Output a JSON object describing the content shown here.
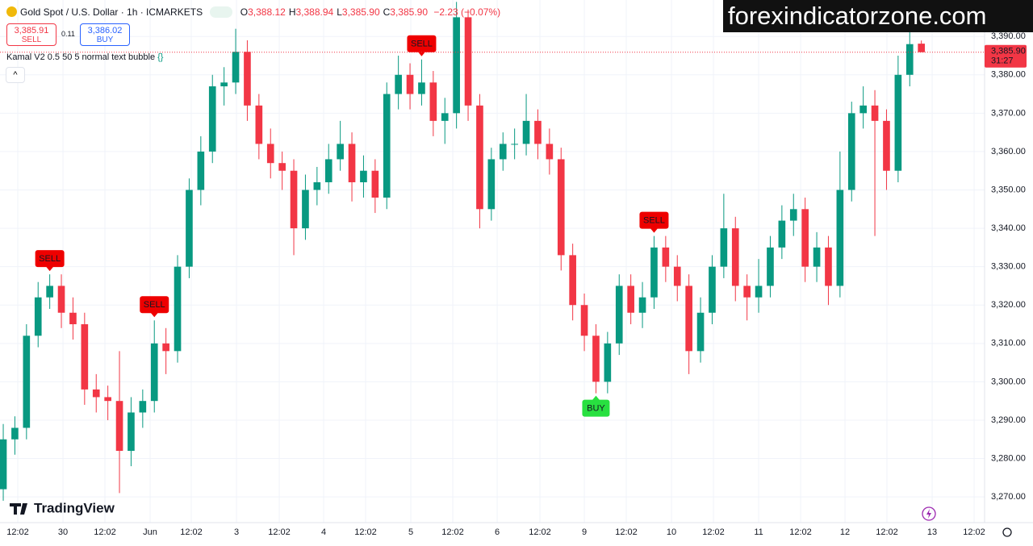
{
  "header": {
    "title": "Gold Spot / U.S. Dollar · 1h · ICMARKETS",
    "ohlc": [
      {
        "key": "O",
        "value": "3,388.12"
      },
      {
        "key": "H",
        "value": "3,388.94"
      },
      {
        "key": "L",
        "value": "3,385.90"
      },
      {
        "key": "C",
        "value": "3,385.90"
      }
    ],
    "change": "−2.23 (−0.07%)",
    "sell": {
      "price": "3,385.91",
      "label": "SELL"
    },
    "spread": "0.11",
    "buy": {
      "price": "3,386.02",
      "label": "BUY"
    },
    "indicator": "Kamal V2 0.5 50 5 normal text bubble"
  },
  "watermark": "forexindicatorzone.com",
  "logo": "TradingView",
  "chart_data": {
    "type": "candlestick",
    "up_color": "#089981",
    "down_color": "#f23645",
    "grid": true,
    "open": [
      3272,
      3285,
      3288,
      3312,
      3322,
      3325,
      3318,
      3315,
      3298,
      3296,
      3295,
      3282,
      3292,
      3295,
      3310,
      3308,
      3330,
      3350,
      3360,
      3377,
      3378,
      3386,
      3372,
      3362,
      3357,
      3355,
      3340,
      3350,
      3352,
      3358,
      3362,
      3352,
      3355,
      3348,
      3375,
      3380,
      3375,
      3378,
      3368,
      3370,
      3395,
      3372,
      3345,
      3358,
      3362,
      3362,
      3368,
      3362,
      3358,
      3333,
      3320,
      3312,
      3300,
      3310,
      3325,
      3318,
      3322,
      3335,
      3330,
      3325,
      3308,
      3318,
      3330,
      3340,
      3325,
      3322,
      3325,
      3335,
      3342,
      3345,
      3330,
      3335,
      3325,
      3350,
      3370,
      3372,
      3368,
      3355,
      3380,
      3388.12
    ],
    "high": [
      3289,
      3291,
      3315,
      3326,
      3328,
      3328,
      3322,
      3318,
      3302,
      3299,
      3308,
      3296,
      3298,
      3316,
      3314,
      3333,
      3353,
      3364,
      3380,
      3382,
      3392,
      3389,
      3375,
      3366,
      3360,
      3358,
      3354,
      3356,
      3362,
      3368,
      3365,
      3359,
      3358,
      3378,
      3385,
      3383,
      3384,
      3381,
      3374,
      3399,
      3397,
      3375,
      3361,
      3365,
      3366,
      3375,
      3371,
      3366,
      3361,
      3336,
      3323,
      3315,
      3313,
      3328,
      3328,
      3326,
      3338,
      3338,
      3333,
      3328,
      3322,
      3333,
      3349,
      3343,
      3328,
      3332,
      3338,
      3346,
      3349,
      3348,
      3339,
      3338,
      3360,
      3373,
      3377,
      3376,
      3371,
      3385,
      3392,
      3388.94
    ],
    "low": [
      3269,
      3281,
      3285,
      3309,
      3319,
      3314,
      3311,
      3294,
      3292,
      3290,
      3271,
      3278,
      3288,
      3292,
      3302,
      3305,
      3327,
      3346,
      3357,
      3372,
      3375,
      3368,
      3358,
      3353,
      3350,
      3333,
      3337,
      3346,
      3349,
      3355,
      3347,
      3348,
      3344,
      3345,
      3371,
      3371,
      3372,
      3364,
      3362,
      3366,
      3368,
      3340,
      3342,
      3355,
      3358,
      3359,
      3358,
      3354,
      3329,
      3316,
      3308,
      3297,
      3297,
      3307,
      3315,
      3314,
      3319,
      3326,
      3321,
      3302,
      3305,
      3315,
      3327,
      3321,
      3316,
      3318,
      3322,
      3332,
      3338,
      3326,
      3326,
      3320,
      3322,
      3347,
      3366,
      3338,
      3350,
      3352,
      3377,
      3385.9
    ],
    "close": [
      3285,
      3288,
      3312,
      3322,
      3325,
      3318,
      3315,
      3298,
      3296,
      3295,
      3282,
      3292,
      3295,
      3310,
      3308,
      3330,
      3350,
      3360,
      3377,
      3378,
      3386,
      3372,
      3362,
      3357,
      3355,
      3340,
      3350,
      3352,
      3358,
      3362,
      3352,
      3355,
      3348,
      3375,
      3380,
      3375,
      3378,
      3368,
      3370,
      3395,
      3372,
      3345,
      3358,
      3362,
      3362,
      3368,
      3362,
      3358,
      3333,
      3320,
      3312,
      3300,
      3310,
      3325,
      3318,
      3322,
      3335,
      3330,
      3325,
      3308,
      3318,
      3330,
      3340,
      3325,
      3322,
      3325,
      3335,
      3342,
      3345,
      3330,
      3335,
      3325,
      3350,
      3370,
      3372,
      3368,
      3355,
      3380,
      3388,
      3385.9
    ],
    "signals": [
      {
        "index": 4,
        "label": "SELL"
      },
      {
        "index": 13,
        "label": "SELL"
      },
      {
        "index": 36,
        "label": "SELL"
      },
      {
        "index": 51,
        "label": "BUY"
      },
      {
        "index": 56,
        "label": "SELL"
      }
    ],
    "last_price": {
      "value": 3385.9,
      "label": "3,385.90"
    },
    "countdown": "31:27",
    "xlim": [
      -0.28,
      84.44
    ],
    "ylim": [
      3263.3,
      3399.5
    ],
    "yticks": [
      {
        "value": 3270,
        "label": "3,270.00"
      },
      {
        "value": 3280,
        "label": "3,280.00"
      },
      {
        "value": 3290,
        "label": "3,290.00"
      },
      {
        "value": 3300,
        "label": "3,300.00"
      },
      {
        "value": 3310,
        "label": "3,310.00"
      },
      {
        "value": 3320,
        "label": "3,320.00"
      },
      {
        "value": 3330,
        "label": "3,330.00"
      },
      {
        "value": 3340,
        "label": "3,340.00"
      },
      {
        "value": 3350,
        "label": "3,350.00"
      },
      {
        "value": 3360,
        "label": "3,360.00"
      },
      {
        "value": 3370,
        "label": "3,370.00"
      },
      {
        "value": 3380,
        "label": "3,380.00"
      },
      {
        "value": 3390,
        "label": "3,390.00"
      }
    ],
    "xticks": [
      {
        "value": 1.25,
        "label": "12:02"
      },
      {
        "value": 5.14,
        "label": "30"
      },
      {
        "value": 8.75,
        "label": "12:02"
      },
      {
        "value": 12.64,
        "label": "Jun"
      },
      {
        "value": 16.18,
        "label": "12:02"
      },
      {
        "value": 20.07,
        "label": "3"
      },
      {
        "value": 23.75,
        "label": "12:02"
      },
      {
        "value": 27.57,
        "label": "4"
      },
      {
        "value": 31.18,
        "label": "12:02"
      },
      {
        "value": 35.07,
        "label": "5"
      },
      {
        "value": 38.68,
        "label": "12:02"
      },
      {
        "value": 42.5,
        "label": "6"
      },
      {
        "value": 46.18,
        "label": "12:02"
      },
      {
        "value": 50,
        "label": "9"
      },
      {
        "value": 53.61,
        "label": "12:02"
      },
      {
        "value": 57.5,
        "label": "10"
      },
      {
        "value": 61.11,
        "label": "12:02"
      },
      {
        "value": 65,
        "label": "11"
      },
      {
        "value": 68.61,
        "label": "12:02"
      },
      {
        "value": 72.43,
        "label": "12"
      },
      {
        "value": 76.04,
        "label": "12:02"
      },
      {
        "value": 79.93,
        "label": "13"
      },
      {
        "value": 83.54,
        "label": "12:02"
      }
    ]
  }
}
